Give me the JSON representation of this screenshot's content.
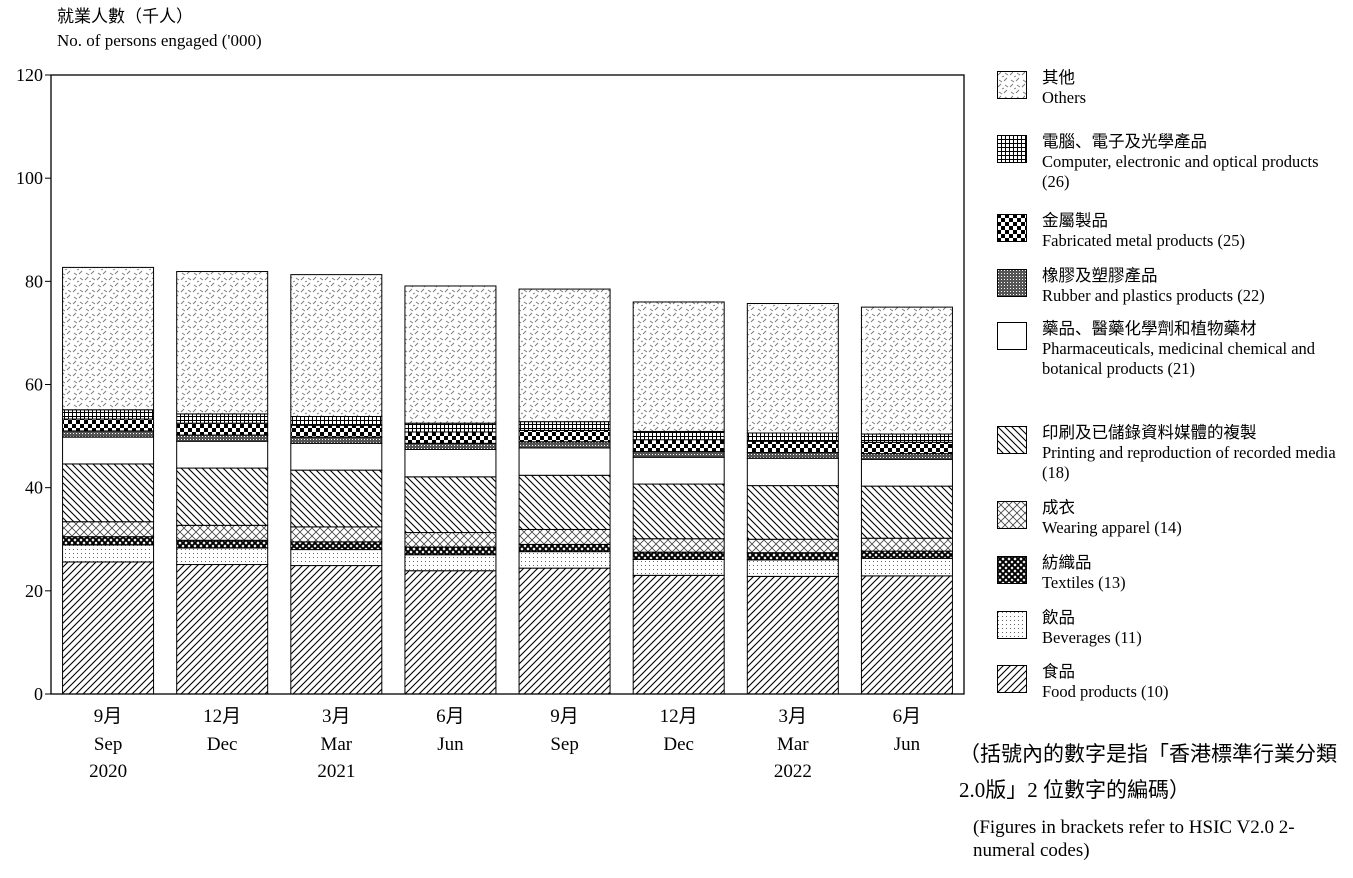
{
  "chart_data": {
    "type": "bar",
    "stacked": true,
    "ylabel_zh": "就業人數（千人）",
    "ylabel_en": "No. of persons engaged ('000)",
    "ylim": [
      0,
      120
    ],
    "yticks": [
      "0",
      "20",
      "40",
      "60",
      "80",
      "100",
      "120"
    ],
    "categories": [
      {
        "month_zh": "9月",
        "month_en": "Sep",
        "year": "2020"
      },
      {
        "month_zh": "12月",
        "month_en": "Dec",
        "year": ""
      },
      {
        "month_zh": "3月",
        "month_en": "Mar",
        "year": "2021"
      },
      {
        "month_zh": "6月",
        "month_en": "Jun",
        "year": ""
      },
      {
        "month_zh": "9月",
        "month_en": "Sep",
        "year": ""
      },
      {
        "month_zh": "12月",
        "month_en": "Dec",
        "year": ""
      },
      {
        "month_zh": "3月",
        "month_en": "Mar",
        "year": "2022"
      },
      {
        "month_zh": "6月",
        "month_en": "Jun",
        "year": ""
      }
    ],
    "series": [
      {
        "name_zh": "食品",
        "name_en": "Food products (10)",
        "pattern": "diag-fwd",
        "values": [
          25.6,
          25.1,
          24.9,
          23.9,
          24.4,
          23.0,
          22.8,
          22.9
        ]
      },
      {
        "name_zh": "飲品",
        "name_en": "Beverages (11)",
        "pattern": "dots",
        "values": [
          3.3,
          3.2,
          3.1,
          3.1,
          3.2,
          3.1,
          3.2,
          3.4
        ]
      },
      {
        "name_zh": "紡織品",
        "name_en": "Textiles (13)",
        "pattern": "heavy-cross",
        "values": [
          1.6,
          1.5,
          1.5,
          1.5,
          1.4,
          1.4,
          1.4,
          1.4
        ]
      },
      {
        "name_zh": "成衣",
        "name_en": "Wearing apparel (14)",
        "pattern": "light-cross",
        "values": [
          2.9,
          2.9,
          2.9,
          2.8,
          2.9,
          2.6,
          2.6,
          2.5
        ]
      },
      {
        "name_zh": "印刷及已儲錄資料媒體的複製",
        "name_en": "Printing and reproduction of recorded media (18)",
        "pattern": "diag-back",
        "values": [
          11.2,
          11.1,
          11.0,
          10.8,
          10.5,
          10.6,
          10.4,
          10.1
        ]
      },
      {
        "name_zh": "藥品、醫藥化學劑和植物藥材",
        "name_en": "Pharmaceuticals, medicinal chemical and botanical products (21)",
        "pattern": "blank",
        "values": [
          5.2,
          5.2,
          5.2,
          5.3,
          5.3,
          5.2,
          5.3,
          5.2
        ]
      },
      {
        "name_zh": "橡膠及塑膠產品",
        "name_en": "Rubber and plastics products (22)",
        "pattern": "fine-check",
        "values": [
          1.2,
          1.2,
          1.2,
          1.2,
          1.2,
          1.1,
          1.1,
          1.1
        ]
      },
      {
        "name_zh": "金屬製品",
        "name_en": "Fabricated metal products (25)",
        "pattern": "checker",
        "values": [
          2.3,
          2.3,
          2.3,
          2.2,
          2.2,
          2.3,
          2.2,
          2.2
        ]
      },
      {
        "name_zh": "電腦、電子及光學產品",
        "name_en": "Computer, electronic and optical products (26)",
        "pattern": "grid",
        "values": [
          1.8,
          1.8,
          1.7,
          1.7,
          1.7,
          1.6,
          1.6,
          1.6
        ]
      },
      {
        "name_zh": "其他",
        "name_en": "Others",
        "pattern": "others",
        "values": [
          27.6,
          27.6,
          27.5,
          26.6,
          25.7,
          25.1,
          25.1,
          24.6
        ]
      }
    ]
  },
  "footnote_zh": "（括號內的數字是指「香港標準行業分類2.0版」2 位數字的編碼）",
  "footnote_en": "(Figures in brackets refer to HSIC V2.0 2-numeral codes)"
}
